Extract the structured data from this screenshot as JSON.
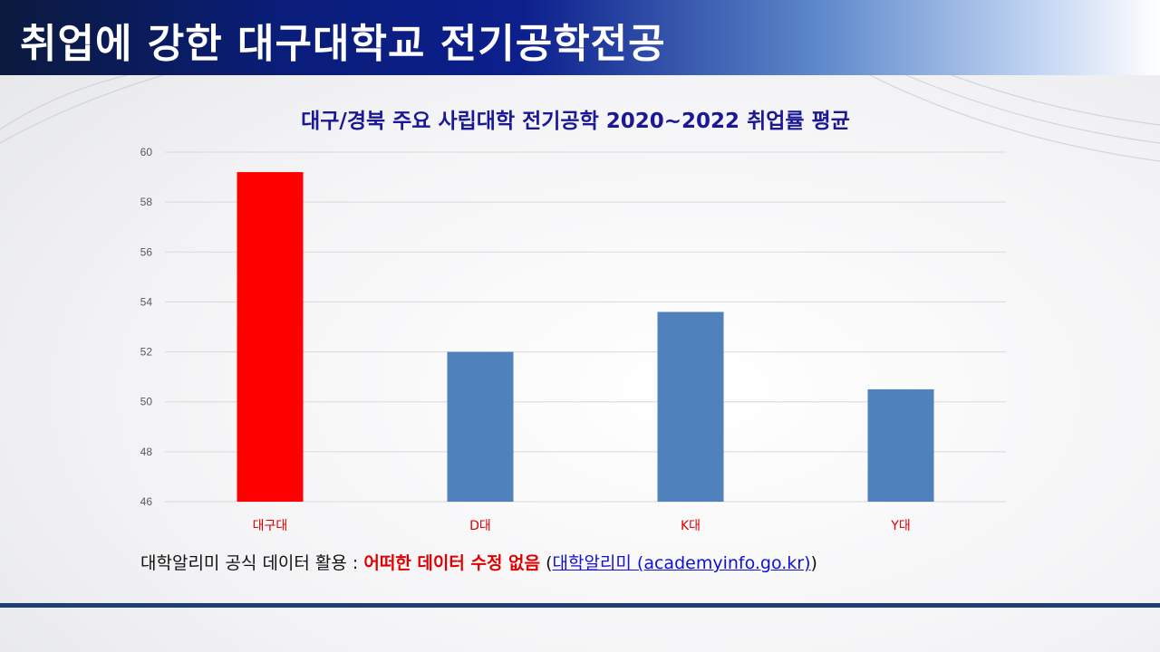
{
  "header": {
    "title": "취업에 강한 대구대학교 전기공학전공"
  },
  "footnote": {
    "prefix": "대학알리미 공식 데이터 활용 : ",
    "emphasis": "어떠한 데이터 수정 없음",
    "open_paren": " (",
    "link": "대학알리미  (academyinfo.go.kr)",
    "close_paren": ")"
  },
  "colors": {
    "highlight": "#ff0000",
    "default": "#4f81bd",
    "title": "#1a1896",
    "category_label": "#e00000"
  },
  "chart_data": {
    "type": "bar",
    "title": "대구/경북 주요 사립대학  전기공학 2020~2022 취업률 평균",
    "categories": [
      "대구대",
      "D대",
      "K대",
      "Y대"
    ],
    "values": [
      59.2,
      52.0,
      53.6,
      50.5
    ],
    "bar_colors": [
      "#ff0000",
      "#4f81bd",
      "#4f81bd",
      "#4f81bd"
    ],
    "ylim": [
      46,
      60
    ],
    "yticks": [
      "46",
      "48",
      "50",
      "52",
      "54",
      "56",
      "58",
      "60"
    ],
    "grid": true,
    "xlabel": "",
    "ylabel": ""
  }
}
